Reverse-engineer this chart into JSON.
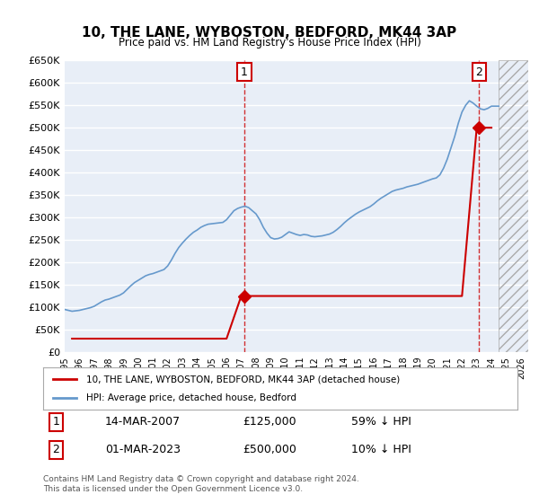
{
  "title": "10, THE LANE, WYBOSTON, BEDFORD, MK44 3AP",
  "subtitle": "Price paid vs. HM Land Registry's House Price Index (HPI)",
  "ylabel": "",
  "ylim": [
    0,
    650000
  ],
  "yticks": [
    0,
    50000,
    100000,
    150000,
    200000,
    250000,
    300000,
    350000,
    400000,
    450000,
    500000,
    550000,
    600000,
    650000
  ],
  "ytick_labels": [
    "£0",
    "£50K",
    "£100K",
    "£150K",
    "£200K",
    "£250K",
    "£300K",
    "£350K",
    "£400K",
    "£450K",
    "£500K",
    "£550K",
    "£600K",
    "£650K"
  ],
  "xlim_start": 1995.0,
  "xlim_end": 2026.5,
  "background_color": "#ffffff",
  "plot_bg_color": "#e8eef7",
  "grid_color": "#ffffff",
  "hpi_color": "#6699cc",
  "price_color": "#cc0000",
  "marker1_x": 2007.2,
  "marker1_y": 125000,
  "marker1_label": "1",
  "marker1_date": "14-MAR-2007",
  "marker1_price": "£125,000",
  "marker1_hpi": "59% ↓ HPI",
  "marker2_x": 2023.17,
  "marker2_y": 500000,
  "marker2_label": "2",
  "marker2_date": "01-MAR-2023",
  "marker2_price": "£500,000",
  "marker2_hpi": "10% ↓ HPI",
  "legend_line1": "10, THE LANE, WYBOSTON, BEDFORD, MK44 3AP (detached house)",
  "legend_line2": "HPI: Average price, detached house, Bedford",
  "footnote": "Contains HM Land Registry data © Crown copyright and database right 2024.\nThis data is licensed under the Open Government Licence v3.0.",
  "hpi_x": [
    1995.0,
    1995.25,
    1995.5,
    1995.75,
    1996.0,
    1996.25,
    1996.5,
    1996.75,
    1997.0,
    1997.25,
    1997.5,
    1997.75,
    1998.0,
    1998.25,
    1998.5,
    1998.75,
    1999.0,
    1999.25,
    1999.5,
    1999.75,
    2000.0,
    2000.25,
    2000.5,
    2000.75,
    2001.0,
    2001.25,
    2001.5,
    2001.75,
    2002.0,
    2002.25,
    2002.5,
    2002.75,
    2003.0,
    2003.25,
    2003.5,
    2003.75,
    2004.0,
    2004.25,
    2004.5,
    2004.75,
    2005.0,
    2005.25,
    2005.5,
    2005.75,
    2006.0,
    2006.25,
    2006.5,
    2006.75,
    2007.0,
    2007.25,
    2007.5,
    2007.75,
    2008.0,
    2008.25,
    2008.5,
    2008.75,
    2009.0,
    2009.25,
    2009.5,
    2009.75,
    2010.0,
    2010.25,
    2010.5,
    2010.75,
    2011.0,
    2011.25,
    2011.5,
    2011.75,
    2012.0,
    2012.25,
    2012.5,
    2012.75,
    2013.0,
    2013.25,
    2013.5,
    2013.75,
    2014.0,
    2014.25,
    2014.5,
    2014.75,
    2015.0,
    2015.25,
    2015.5,
    2015.75,
    2016.0,
    2016.25,
    2016.5,
    2016.75,
    2017.0,
    2017.25,
    2017.5,
    2017.75,
    2018.0,
    2018.25,
    2018.5,
    2018.75,
    2019.0,
    2019.25,
    2019.5,
    2019.75,
    2020.0,
    2020.25,
    2020.5,
    2020.75,
    2021.0,
    2021.25,
    2021.5,
    2021.75,
    2022.0,
    2022.25,
    2022.5,
    2022.75,
    2023.0,
    2023.25,
    2023.5,
    2023.75,
    2024.0,
    2024.25,
    2024.5
  ],
  "hpi_y": [
    95000,
    93000,
    91000,
    92000,
    93000,
    95000,
    97000,
    99000,
    102000,
    107000,
    112000,
    116000,
    118000,
    121000,
    124000,
    127000,
    132000,
    140000,
    148000,
    155000,
    160000,
    165000,
    170000,
    173000,
    175000,
    178000,
    181000,
    184000,
    192000,
    205000,
    220000,
    233000,
    243000,
    252000,
    260000,
    267000,
    272000,
    278000,
    282000,
    285000,
    286000,
    287000,
    288000,
    289000,
    295000,
    305000,
    315000,
    320000,
    323000,
    325000,
    322000,
    315000,
    308000,
    295000,
    278000,
    265000,
    255000,
    252000,
    253000,
    256000,
    262000,
    268000,
    265000,
    262000,
    260000,
    262000,
    261000,
    258000,
    257000,
    258000,
    259000,
    261000,
    263000,
    267000,
    273000,
    280000,
    288000,
    295000,
    301000,
    307000,
    312000,
    316000,
    320000,
    324000,
    330000,
    337000,
    343000,
    348000,
    353000,
    358000,
    361000,
    363000,
    365000,
    368000,
    370000,
    372000,
    374000,
    377000,
    380000,
    383000,
    386000,
    388000,
    395000,
    410000,
    430000,
    455000,
    480000,
    510000,
    535000,
    550000,
    560000,
    555000,
    548000,
    542000,
    540000,
    543000,
    548000,
    548000,
    548000
  ],
  "price_x": [
    1995.5,
    1995.75,
    1996.0,
    1996.25,
    1996.5,
    1997.0,
    1997.5,
    1998.0,
    1998.5,
    1999.0,
    1999.5,
    2000.0,
    2000.5,
    2001.0,
    2001.5,
    2002.0,
    2002.5,
    2003.0,
    2004.0,
    2005.0,
    2006.0,
    2007.0,
    2008.0,
    2009.0,
    2010.0,
    2011.0,
    2012.0,
    2013.0,
    2014.0,
    2015.0,
    2016.0,
    2017.0,
    2018.0,
    2019.0,
    2020.0,
    2021.0,
    2022.0,
    2023.0,
    2024.0
  ],
  "price_y": [
    30000,
    30000,
    30000,
    30000,
    30000,
    30000,
    30000,
    30000,
    30000,
    30000,
    30000,
    30000,
    30000,
    30000,
    30000,
    30000,
    30000,
    30000,
    30000,
    30000,
    30000,
    125000,
    125000,
    125000,
    125000,
    125000,
    125000,
    125000,
    125000,
    125000,
    125000,
    125000,
    125000,
    125000,
    125000,
    125000,
    125000,
    500000,
    500000
  ]
}
